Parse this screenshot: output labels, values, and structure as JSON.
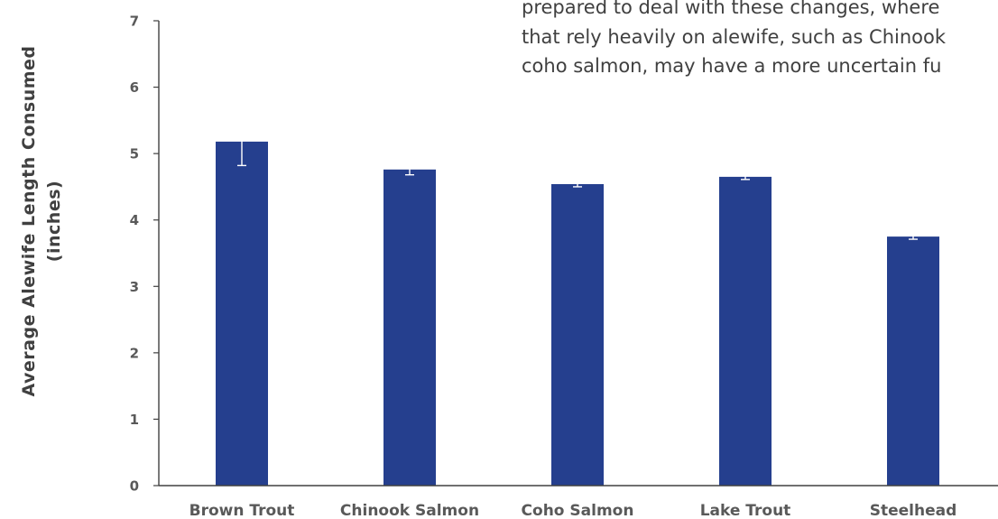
{
  "overlay_text": {
    "lines": [
      "prepared to deal with these changes, where",
      "that rely heavily on alewife, such as Chinook",
      "coho salmon, may have a more uncertain fu"
    ]
  },
  "chart_data": {
    "type": "bar",
    "categories": [
      "Brown Trout",
      "Chinook Salmon",
      "Coho Salmon",
      "Lake Trout",
      "Steelhead"
    ],
    "values": [
      5.18,
      4.76,
      4.54,
      4.65,
      3.75
    ],
    "error": [
      0.36,
      0.08,
      0.04,
      0.04,
      0.04
    ],
    "title": "",
    "xlabel": "",
    "ylabel_lines": [
      "Average Alewife Length Consumed",
      "(inches)"
    ],
    "ylim": [
      0,
      7
    ],
    "yticks": [
      0,
      1,
      2,
      3,
      4,
      5,
      6,
      7
    ],
    "grid": false,
    "legend": "none",
    "bar_color": "#253f8e",
    "error_bar_color": "#ffffff",
    "axis_color": "#404040"
  }
}
